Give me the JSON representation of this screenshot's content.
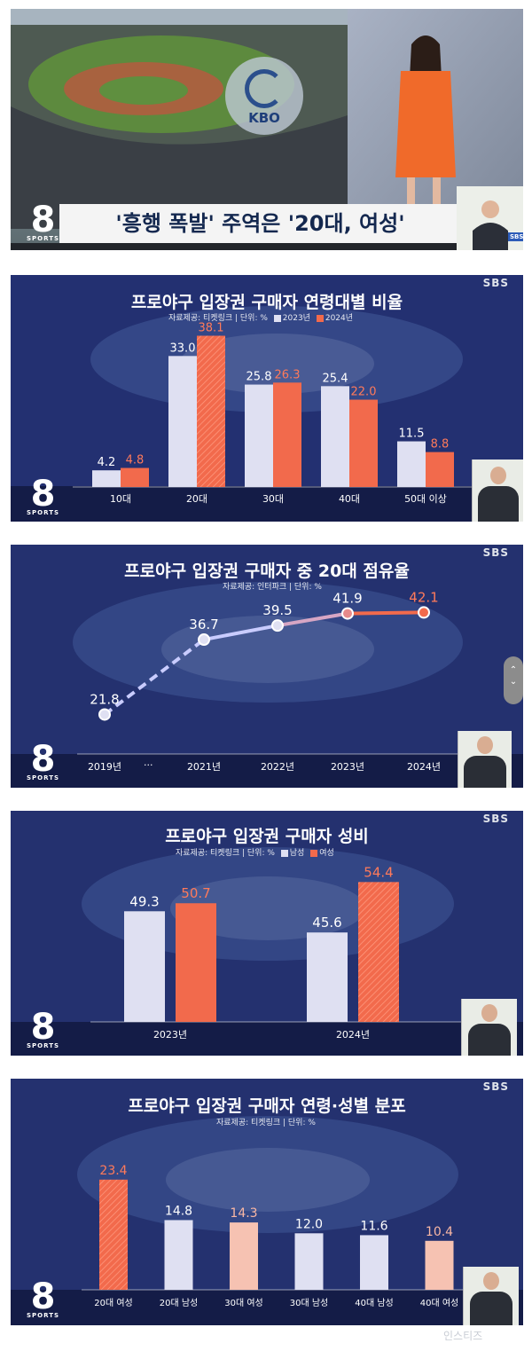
{
  "panel1": {
    "caption": "'흥행 폭발' 주역은 '20대, 여성'",
    "kbo_text": "KBO",
    "sbs_text": "SBS",
    "logo_text": "8",
    "logo_sub": "SPORTS"
  },
  "sbs_watermark": "SBS",
  "logo_text": "8",
  "logo_sub": "SPORTS",
  "watermark_bottom": "인스티즈",
  "charts": {
    "c1": {
      "source": "자료제공: 티켓링크 | 단위: %",
      "legend": [
        {
          "name": "2023년",
          "color": "#dfe0f2"
        },
        {
          "name": "2024년",
          "color": "#f26a4c"
        }
      ]
    },
    "c2": {
      "source": "자료제공: 인터파크 | 단위: %",
      "ellipsis": "···"
    },
    "c3": {
      "source": "자료제공: 티켓링크 | 단위: %",
      "legend": [
        {
          "name": "남성",
          "color": "#dfe0f2"
        },
        {
          "name": "여성",
          "color": "#f26a4c"
        }
      ]
    },
    "c4": {
      "source": "자료제공: 티켓링크 | 단위: %"
    }
  },
  "chart_data": [
    {
      "type": "bar",
      "title": "프로야구 입장권 구매자 연령대별 비율",
      "categories": [
        "10대",
        "20대",
        "30대",
        "40대",
        "50대 이상"
      ],
      "series": [
        {
          "name": "2023년",
          "values": [
            4.2,
            33.0,
            25.8,
            25.4,
            11.5
          ],
          "color": "#dfe0f2"
        },
        {
          "name": "2024년",
          "values": [
            4.8,
            38.1,
            26.3,
            22.0,
            8.8
          ],
          "color": "#f26a4c"
        }
      ],
      "ylim": [
        0,
        40
      ]
    },
    {
      "type": "line",
      "title": "프로야구 입장권 구매자 중 20대 점유율",
      "x": [
        "2019년",
        "2021년",
        "2022년",
        "2023년",
        "2024년"
      ],
      "values": [
        21.8,
        36.7,
        39.5,
        41.9,
        42.1
      ],
      "ylim": [
        15,
        45
      ]
    },
    {
      "type": "bar",
      "title": "프로야구 입장권 구매자 성비",
      "categories": [
        "2023년",
        "2024년"
      ],
      "series": [
        {
          "name": "남성",
          "values": [
            49.3,
            45.6
          ],
          "color": "#dfe0f2"
        },
        {
          "name": "여성",
          "values": [
            50.7,
            54.4
          ],
          "color": "#f26a4c"
        }
      ],
      "ylim": [
        30,
        56
      ]
    },
    {
      "type": "bar",
      "title": "프로야구 입장권 구매자 연령·성별 분포",
      "categories": [
        "20대 여성",
        "20대 남성",
        "30대 여성",
        "30대 남성",
        "40대 남성",
        "40대 여성"
      ],
      "values": [
        23.4,
        14.8,
        14.3,
        12.0,
        11.6,
        10.4
      ],
      "colors": [
        "#f26a4c",
        "#dfe0f2",
        "#f6c2b2",
        "#dfe0f2",
        "#dfe0f2",
        "#f6c2b2"
      ],
      "ylim": [
        0,
        26
      ]
    }
  ]
}
